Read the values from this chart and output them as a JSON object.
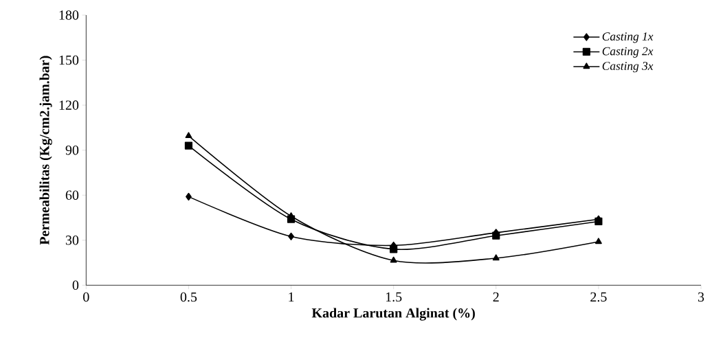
{
  "chart_data": {
    "type": "line",
    "xlabel": "Kadar Larutan Alginat (%)",
    "ylabel": "Permeabilitas (Kg/cm2.jam.bar)",
    "x": [
      0.5,
      1,
      1.5,
      2,
      2.5
    ],
    "series": [
      {
        "name": "*Casting 1x*",
        "color": "#000000",
        "marker": "diamond",
        "values": [
          59,
          32.5,
          26.5,
          35,
          44
        ]
      },
      {
        "name": "*Casting 2x*",
        "color": "#000000",
        "marker": "square",
        "values": [
          93,
          44,
          24,
          33,
          42.5
        ]
      },
      {
        "name": "*Casting 3x*",
        "color": "#000000",
        "marker": "triangle",
        "values": [
          99.5,
          46,
          16.5,
          18,
          29
        ]
      }
    ],
    "xlim": [
      0,
      3
    ],
    "xticks": [
      0,
      0.5,
      1,
      1.5,
      2,
      2.5,
      3
    ],
    "ylim": [
      0,
      180
    ],
    "yticks": [
      0,
      30,
      60,
      90,
      120,
      150,
      180
    ],
    "grid": false,
    "legend": "top right",
    "line_style": "solid"
  }
}
